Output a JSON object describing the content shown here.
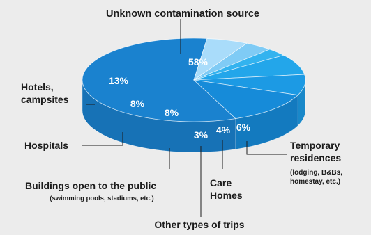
{
  "chart_data": {
    "type": "pie",
    "style": "3d-pie",
    "title": "",
    "slices": [
      {
        "label": "Unknown contamination source",
        "sublabel": "",
        "value": 58,
        "value_label": "58%",
        "color": "#1a82cf"
      },
      {
        "label": "Temporary residences",
        "sublabel": "(lodging, B&Bs, homestay, etc.)",
        "value": 6,
        "value_label": "6%",
        "color": "#a9dcfa"
      },
      {
        "label": "Care Homes",
        "sublabel": "",
        "value": 4,
        "value_label": "4%",
        "color": "#7fcbf5"
      },
      {
        "label": "Other types of trips",
        "sublabel": "",
        "value": 3,
        "value_label": "3%",
        "color": "#33b3ef"
      },
      {
        "label": "Buildings open to the public",
        "sublabel": "(swimming pools, stadiums, etc.)",
        "value": 8,
        "value_label": "8%",
        "color": "#23a6ea"
      },
      {
        "label": "Hospitals",
        "sublabel": "",
        "value": 8,
        "value_label": "8%",
        "color": "#1c9ae4"
      },
      {
        "label": "Hotels, campsites",
        "sublabel": "",
        "value": 13,
        "value_label": "13%",
        "color": "#168bd9"
      }
    ],
    "legend": "none (callout labels around the pie)"
  }
}
